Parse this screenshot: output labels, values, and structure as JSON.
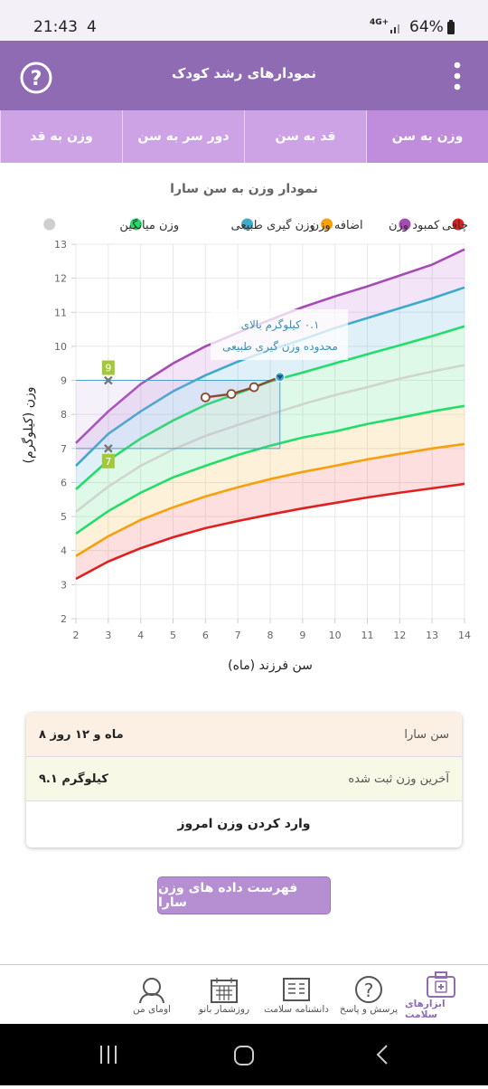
{
  "status_bar": {
    "time": "21:43",
    "notification": "4",
    "network": "4G+",
    "battery": "64%"
  },
  "header": {
    "title": "نمودارهای رشد کودک"
  },
  "tabs": [
    "وزن به سن",
    "قد به سن",
    "دور سر به سن",
    "وزن به قد"
  ],
  "chart_data": {
    "type": "line",
    "title": "نمودار وزن به سن سارا",
    "x_label": "سن فرزند (ماه)",
    "y_label": "وزن (کیلوگرم)",
    "legend": [
      {
        "color": "#e01f1f"
      },
      {
        "name": "چاقی",
        "color": "#a64bb5"
      },
      {
        "name": "کمبود وزن",
        "color": "#f5a00c"
      },
      {
        "name": "اضافه وزن",
        "color": "#3fa9c9"
      },
      {
        "name": "وزن گیری طبیعی",
        "color": "#22dd6a"
      },
      {
        "name": "وزن میانگین",
        "color": "#cfcfcf"
      }
    ],
    "x": [
      2,
      3,
      4,
      5,
      6,
      7,
      8,
      9,
      10,
      11,
      12,
      13,
      14
    ],
    "series": [
      {
        "color": "#a64bb5",
        "fill": "rgba(190,110,210,0.18)",
        "values": [
          7.16,
          8.09,
          8.89,
          9.5,
          10.0,
          10.4,
          10.78,
          11.15,
          11.47,
          11.76,
          12.08,
          12.4,
          12.85
        ]
      },
      {
        "color": "#3fa9c9",
        "fill": "rgba(80,170,220,0.18)",
        "values": [
          6.49,
          7.43,
          8.09,
          8.68,
          9.15,
          9.55,
          9.9,
          10.2,
          10.54,
          10.83,
          11.12,
          11.41,
          11.73
        ]
      },
      {
        "color": "#22dd6a",
        "fill": "rgba(60,220,120,0.17)",
        "values": [
          5.8,
          6.65,
          7.29,
          7.82,
          8.28,
          8.62,
          8.97,
          9.23,
          9.5,
          9.77,
          10.03,
          10.3,
          10.59
        ]
      },
      {
        "color": "#cfd6cf",
        "fill": "rgba(60,220,120,0.17)",
        "values": [
          5.14,
          5.88,
          6.49,
          6.97,
          7.37,
          7.69,
          8.0,
          8.3,
          8.57,
          8.8,
          9.05,
          9.26,
          9.45
        ]
      },
      {
        "color": "#22dd6a",
        "fill": "rgba(250,190,80,0.22)",
        "values": [
          4.5,
          5.16,
          5.7,
          6.15,
          6.49,
          6.81,
          7.08,
          7.32,
          7.5,
          7.72,
          7.9,
          8.09,
          8.25
        ]
      },
      {
        "color": "#f5a00c",
        "fill": "rgba(245,110,110,0.22)",
        "values": [
          3.84,
          4.42,
          4.9,
          5.27,
          5.59,
          5.86,
          6.1,
          6.31,
          6.49,
          6.68,
          6.84,
          7.0,
          7.13
        ]
      },
      {
        "color": "#e01f1f",
        "values": [
          3.17,
          3.68,
          4.07,
          4.39,
          4.66,
          4.87,
          5.06,
          5.24,
          5.4,
          5.56,
          5.7,
          5.83,
          5.96
        ]
      }
    ],
    "measurements": {
      "color": "#8b4a2b",
      "x": [
        6,
        6.8,
        7.5,
        8.3
      ],
      "values": [
        8.5,
        8.6,
        8.8,
        9.1
      ]
    },
    "normal_range": [
      9,
      7
    ],
    "annotation": [
      "۰.۱ کیلوگرم بالای",
      "محدوده وزن گیری طبیعی"
    ],
    "xlim": [
      2,
      14
    ],
    "xticks": [
      2,
      3,
      4,
      5,
      6,
      7,
      8,
      9,
      10,
      11,
      12,
      13,
      14
    ],
    "ylim": [
      2,
      13
    ],
    "yticks": [
      2,
      3,
      4,
      5,
      6,
      7,
      8,
      9,
      10,
      11,
      12,
      13
    ],
    "grid": true
  },
  "info": {
    "rows": [
      {
        "label": "سن سارا",
        "value": "۸ ماه و ۱۲ روز"
      },
      {
        "label": "آخرین وزن ثبت شده",
        "value": "۹.۱ کیلوگرم"
      }
    ],
    "action": "وارد کردن وزن امروز"
  },
  "list_button": "فهرست داده های وزن سارا",
  "bottom_nav": [
    "ابزارهای سلامت",
    "پرسش و پاسخ",
    "دانشنامه سلامت",
    "روزشمار بانو",
    "اومای من"
  ]
}
